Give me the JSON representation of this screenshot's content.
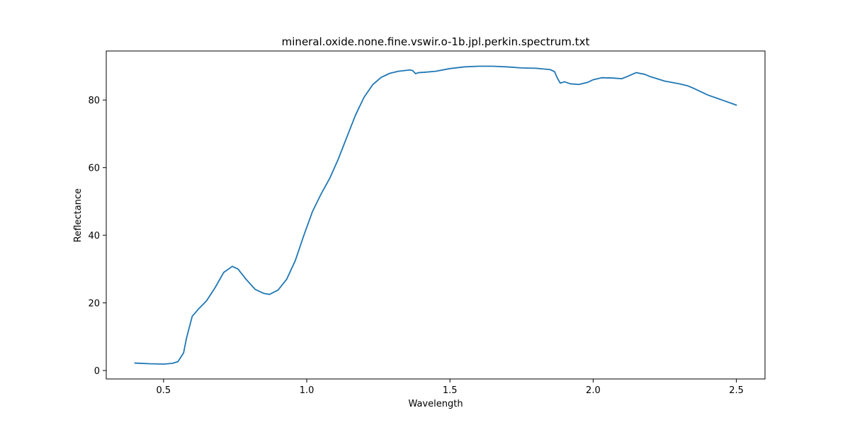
{
  "chart_data": {
    "type": "line",
    "title": "mineral.oxide.none.fine.vswir.o-1b.jpl.perkin.spectrum.txt",
    "xlabel": "Wavelength",
    "ylabel": "Reflectance",
    "xlim": [
      0.3,
      2.6
    ],
    "ylim": [
      -2.5,
      94.5
    ],
    "xticks": [
      0.5,
      1.0,
      1.5,
      2.0,
      2.5
    ],
    "xtick_labels": [
      "0.5",
      "1.0",
      "1.5",
      "2.0",
      "2.5"
    ],
    "yticks": [
      0,
      20,
      40,
      60,
      80
    ],
    "ytick_labels": [
      "0",
      "20",
      "40",
      "60",
      "80"
    ],
    "grid": false,
    "series": [
      {
        "color": "#1f77b4",
        "x": [
          0.4,
          0.45,
          0.5,
          0.53,
          0.55,
          0.57,
          0.58,
          0.6,
          0.62,
          0.65,
          0.68,
          0.71,
          0.74,
          0.76,
          0.79,
          0.82,
          0.85,
          0.87,
          0.9,
          0.93,
          0.96,
          0.99,
          1.02,
          1.05,
          1.08,
          1.11,
          1.14,
          1.17,
          1.2,
          1.23,
          1.26,
          1.29,
          1.32,
          1.36,
          1.37,
          1.38,
          1.39,
          1.41,
          1.45,
          1.5,
          1.55,
          1.6,
          1.65,
          1.7,
          1.75,
          1.8,
          1.85,
          1.865,
          1.875,
          1.885,
          1.9,
          1.92,
          1.95,
          1.98,
          2.0,
          2.03,
          2.07,
          2.1,
          2.12,
          2.15,
          2.18,
          2.2,
          2.25,
          2.3,
          2.33,
          2.35,
          2.4,
          2.45,
          2.5
        ],
        "y": [
          2.2,
          2.0,
          1.9,
          2.1,
          2.6,
          5.2,
          9.5,
          16.0,
          18.0,
          20.6,
          24.5,
          29.0,
          30.8,
          30.0,
          26.8,
          24.0,
          22.8,
          22.5,
          23.8,
          27.0,
          32.5,
          40.0,
          47.0,
          52.2,
          56.8,
          62.5,
          69.0,
          75.5,
          80.8,
          84.5,
          86.7,
          87.9,
          88.5,
          88.9,
          88.7,
          87.8,
          88.1,
          88.2,
          88.5,
          89.3,
          89.8,
          90.0,
          90.0,
          89.8,
          89.5,
          89.4,
          89.0,
          88.4,
          86.5,
          85.0,
          85.4,
          84.8,
          84.6,
          85.2,
          86.0,
          86.6,
          86.5,
          86.3,
          87.0,
          88.1,
          87.6,
          86.9,
          85.6,
          84.8,
          84.2,
          83.5,
          81.5,
          80.0,
          78.5
        ]
      }
    ]
  }
}
